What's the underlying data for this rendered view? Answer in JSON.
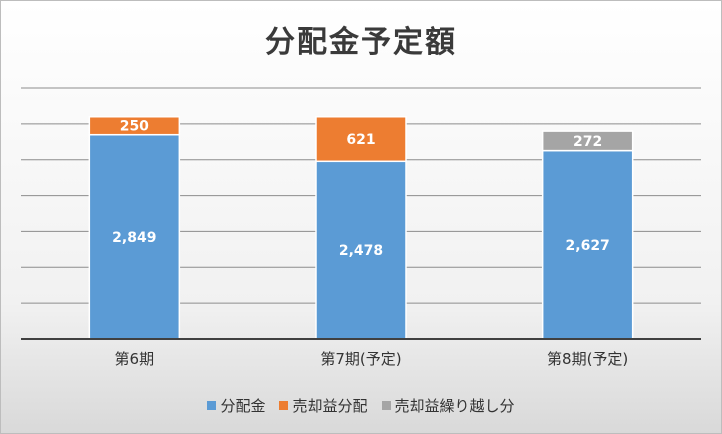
{
  "chart_data": {
    "type": "bar",
    "stacked": true,
    "title": "分配金予定額",
    "categories": [
      "第6期",
      "第7期(予定)",
      "第8期(予定)"
    ],
    "series": [
      {
        "name": "分配金",
        "color": "#5b9bd5",
        "values": [
          2849,
          2478,
          2627
        ]
      },
      {
        "name": "売却益分配",
        "color": "#ed7d31",
        "values": [
          250,
          621,
          null
        ]
      },
      {
        "name": "売却益繰り越し分",
        "color": "#a5a5a5",
        "values": [
          null,
          null,
          272
        ]
      }
    ],
    "value_labels": [
      [
        "2,849",
        "2,478",
        "2,627"
      ],
      [
        "250",
        "621",
        ""
      ],
      [
        "",
        "",
        "272"
      ]
    ],
    "ylim": [
      0,
      3500
    ],
    "grid": true,
    "legend_position": "bottom"
  }
}
